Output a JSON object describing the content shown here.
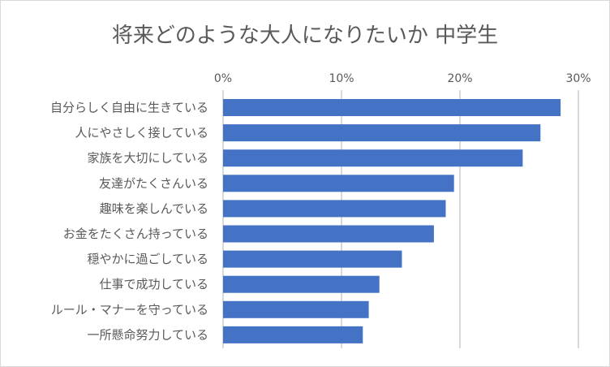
{
  "chart_data": {
    "type": "bar",
    "orientation": "horizontal",
    "title": "将来どのような大人になりたいか 中学生",
    "categories": [
      "自分らしく自由に生きている",
      "人にやさしく接している",
      "家族を大切にしている",
      "友達がたくさんいる",
      "趣味を楽しんでいる",
      "お金をたくさん持っている",
      "穏やかに過ごしている",
      "仕事で成功している",
      "ルール・マナーを守っている",
      "一所懸命努力している"
    ],
    "values": [
      28.5,
      26.8,
      25.3,
      19.5,
      18.8,
      17.8,
      15.1,
      13.2,
      12.3,
      11.8
    ],
    "xlim": [
      0,
      30
    ],
    "xticks": [
      0,
      10,
      20,
      30
    ],
    "xtick_labels": [
      "0%",
      "10%",
      "20%",
      "30%"
    ],
    "xaxis_position": "top",
    "grid": true,
    "bar_color": "#4472c4",
    "grid_color": "#d9d9d9"
  }
}
